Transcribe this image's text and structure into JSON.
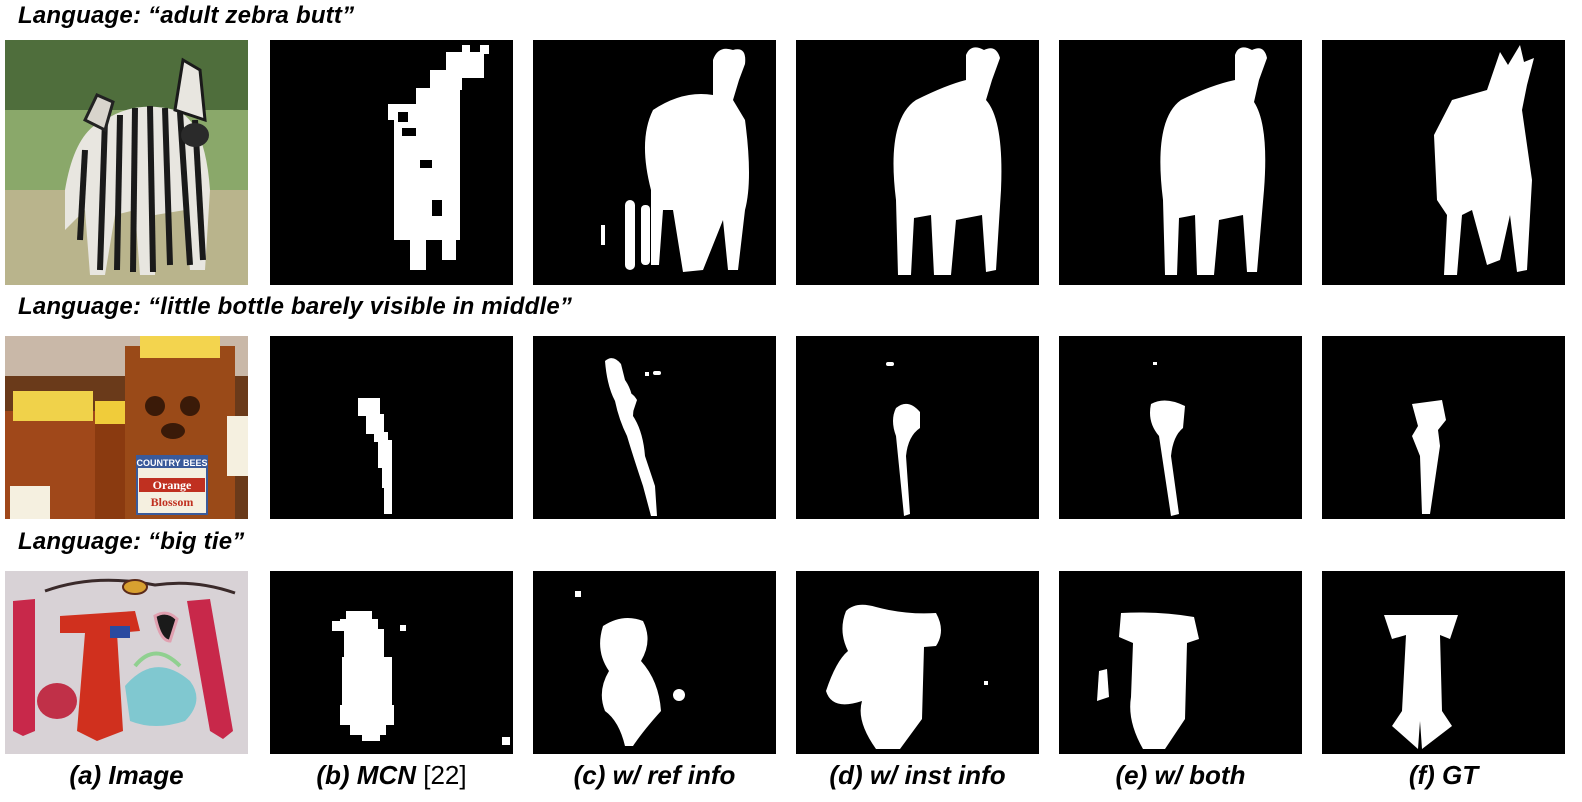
{
  "rows": [
    {
      "caption": "Language: “adult zebra butt”",
      "image_desc": "zebra-photo"
    },
    {
      "caption": "Language: “little bottle barely visible in middle”",
      "image_desc": "honey-bottles-photo"
    },
    {
      "caption": "Language: “big tie”",
      "image_desc": "ties-photo"
    }
  ],
  "columns": [
    {
      "id": "a",
      "label": "(a) Image"
    },
    {
      "id": "b",
      "label_main": "(b) MCN ",
      "label_ref": "[22]"
    },
    {
      "id": "c",
      "label": "(c) w/ ref info"
    },
    {
      "id": "d",
      "label": "(d) w/ inst info"
    },
    {
      "id": "e",
      "label": "(e) w/ both"
    },
    {
      "id": "f",
      "label": "(f) GT"
    }
  ],
  "photo_text": {
    "bottle_label_1": "COUNTRY BEES",
    "bottle_label_2": "Orange",
    "bottle_label_3": "Blossom"
  },
  "colors": {
    "mask_bg": "#000000",
    "mask_fg": "#ffffff"
  }
}
